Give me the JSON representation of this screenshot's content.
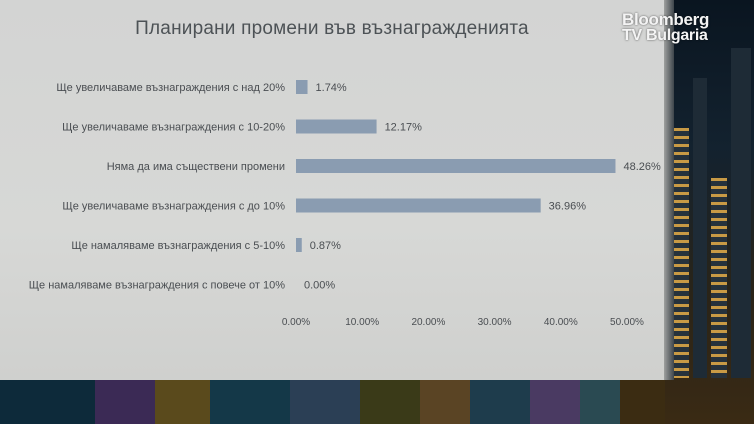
{
  "logo": {
    "line1": "Bloomberg",
    "line2": "TV Bulgaria"
  },
  "chart_data": {
    "type": "bar",
    "orientation": "horizontal",
    "title": "Планирани промени във възнагражденията",
    "categories": [
      "Ще увеличаваме възнаграждения с над 20%",
      "Ще увеличаваме възнаграждения с 10-20%",
      "Няма да има съществени промени",
      "Ще увеличаваме възнаграждения с до 10%",
      "Ще намаляваме възнаграждения с 5-10%",
      "Ще намаляваме възнаграждения с повече от 10%"
    ],
    "values": [
      1.74,
      12.17,
      48.26,
      36.96,
      0.87,
      0.0
    ],
    "value_labels": [
      "1.74%",
      "12.17%",
      "48.26%",
      "36.96%",
      "0.87%",
      "0.00%"
    ],
    "xlim": [
      0,
      50
    ],
    "x_ticks": [
      0,
      10,
      20,
      30,
      40,
      50
    ],
    "x_tick_labels": [
      "0.00%",
      "10.00%",
      "20.00%",
      "30.00%",
      "40.00%",
      "50.00%"
    ],
    "xlabel": "",
    "ylabel": "",
    "grid": false,
    "bar_color": "#8a9cb1"
  }
}
